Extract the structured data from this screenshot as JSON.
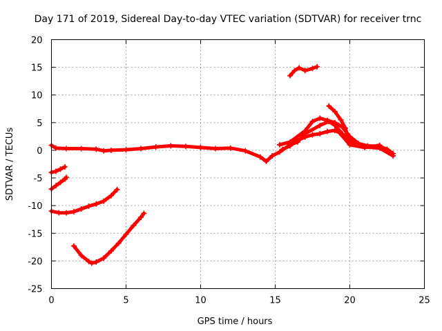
{
  "chart_data": {
    "type": "scatter",
    "title": "Day 171 of 2019, Sidereal Day-to-day VTEC variation (SDTVAR) for receiver trnc",
    "xlabel": "GPS time / hours",
    "ylabel": "SDTVAR / TECUs",
    "xlim": [
      0,
      25
    ],
    "ylim": [
      -25,
      20
    ],
    "xticks": [
      0,
      5,
      10,
      15,
      20,
      25
    ],
    "yticks": [
      -25,
      -20,
      -15,
      -10,
      -5,
      0,
      5,
      10,
      15,
      20
    ],
    "grid": true,
    "marker": "plus",
    "color": "#ff0000",
    "series": [
      {
        "name": "main-band",
        "points": [
          [
            0,
            0.9
          ],
          [
            0.3,
            0.4
          ],
          [
            1,
            0.3
          ],
          [
            2,
            0.3
          ],
          [
            3,
            0.2
          ],
          [
            3.5,
            -0.1
          ],
          [
            4,
            0.0
          ],
          [
            5,
            0.1
          ],
          [
            6,
            0.3
          ],
          [
            7,
            0.6
          ],
          [
            8,
            0.8
          ],
          [
            9,
            0.7
          ],
          [
            10,
            0.5
          ],
          [
            11,
            0.3
          ],
          [
            12,
            0.4
          ],
          [
            13,
            -0.1
          ],
          [
            14,
            -1.2
          ],
          [
            14.4,
            -2.0
          ],
          [
            14.8,
            -1.0
          ],
          [
            15.3,
            -0.3
          ],
          [
            16,
            1.0
          ],
          [
            16.5,
            1.5
          ],
          [
            17,
            3.0
          ],
          [
            18,
            4.5
          ],
          [
            18.6,
            5.2
          ],
          [
            19,
            4.5
          ],
          [
            19.5,
            3.0
          ],
          [
            20,
            1.5
          ],
          [
            21,
            0.6
          ],
          [
            22,
            0.4
          ],
          [
            22.9,
            -1.0
          ]
        ]
      },
      {
        "name": "upper-band",
        "points": [
          [
            15.3,
            1.0
          ],
          [
            16,
            1.5
          ],
          [
            17,
            3.5
          ],
          [
            17.5,
            5.2
          ],
          [
            18,
            5.8
          ],
          [
            18.5,
            5.4
          ],
          [
            19,
            5.0
          ],
          [
            19.5,
            4.2
          ],
          [
            20,
            2.5
          ],
          [
            20.6,
            1.2
          ],
          [
            21.2,
            0.8
          ],
          [
            22,
            0.7
          ],
          [
            22.5,
            0.2
          ],
          [
            22.9,
            -0.6
          ]
        ]
      },
      {
        "name": "lower-band",
        "points": [
          [
            15.5,
            0.2
          ],
          [
            16,
            0.8
          ],
          [
            16.5,
            1.8
          ],
          [
            17,
            2.4
          ],
          [
            17.5,
            2.8
          ],
          [
            18,
            3.0
          ],
          [
            18.5,
            3.4
          ],
          [
            19,
            3.6
          ],
          [
            19.3,
            3.2
          ],
          [
            20,
            1.0
          ],
          [
            21,
            0.5
          ],
          [
            22,
            0.9
          ],
          [
            22.6,
            -0.4
          ]
        ]
      },
      {
        "name": "peak-spike",
        "points": [
          [
            18.6,
            8.0
          ],
          [
            19,
            7.0
          ],
          [
            19.4,
            5.5
          ],
          [
            19.7,
            4.0
          ],
          [
            19.9,
            2.2
          ],
          [
            20.2,
            1.4
          ]
        ]
      },
      {
        "name": "high-segment",
        "points": [
          [
            16.0,
            13.5
          ],
          [
            16.3,
            14.4
          ],
          [
            16.6,
            14.9
          ],
          [
            17.0,
            14.4
          ],
          [
            17.5,
            14.8
          ],
          [
            17.8,
            15.1
          ]
        ]
      },
      {
        "name": "segment-a",
        "points": [
          [
            0,
            -4.0
          ],
          [
            0.3,
            -3.8
          ],
          [
            0.6,
            -3.4
          ],
          [
            0.9,
            -3.0
          ]
        ]
      },
      {
        "name": "segment-b",
        "points": [
          [
            0,
            -7.0
          ],
          [
            0.3,
            -6.4
          ],
          [
            0.6,
            -5.8
          ],
          [
            0.9,
            -5.2
          ],
          [
            1.0,
            -4.9
          ]
        ]
      },
      {
        "name": "segment-c",
        "points": [
          [
            0,
            -11.0
          ],
          [
            0.5,
            -11.3
          ],
          [
            1,
            -11.3
          ],
          [
            1.5,
            -11.1
          ],
          [
            2,
            -10.6
          ],
          [
            2.5,
            -10.1
          ],
          [
            3,
            -9.7
          ],
          [
            3.5,
            -9.2
          ],
          [
            4,
            -8.2
          ],
          [
            4.4,
            -7.1
          ]
        ]
      },
      {
        "name": "segment-d",
        "points": [
          [
            1.5,
            -17.3
          ],
          [
            2,
            -19.0
          ],
          [
            2.5,
            -20.1
          ],
          [
            2.7,
            -20.4
          ],
          [
            3,
            -20.2
          ],
          [
            3.5,
            -19.5
          ],
          [
            4,
            -18.2
          ],
          [
            4.5,
            -16.8
          ],
          [
            5,
            -15.2
          ],
          [
            5.5,
            -13.6
          ],
          [
            6,
            -12.1
          ],
          [
            6.2,
            -11.4
          ]
        ]
      }
    ]
  }
}
